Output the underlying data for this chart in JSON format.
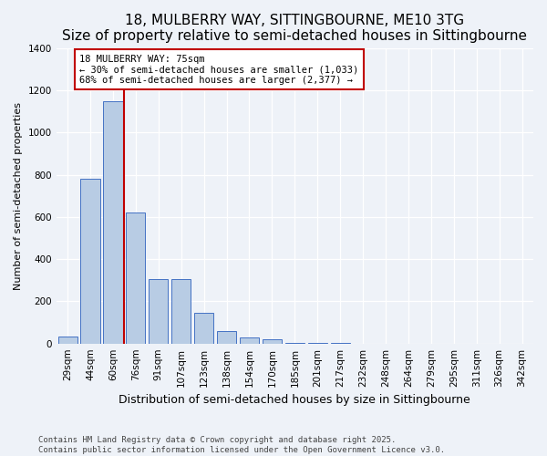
{
  "title": "18, MULBERRY WAY, SITTINGBOURNE, ME10 3TG",
  "subtitle": "Size of property relative to semi-detached houses in Sittingbourne",
  "xlabel": "Distribution of semi-detached houses by size in Sittingbourne",
  "ylabel": "Number of semi-detached properties",
  "categories": [
    "29sqm",
    "44sqm",
    "60sqm",
    "76sqm",
    "91sqm",
    "107sqm",
    "123sqm",
    "138sqm",
    "154sqm",
    "170sqm",
    "185sqm",
    "201sqm",
    "217sqm",
    "232sqm",
    "248sqm",
    "264sqm",
    "279sqm",
    "295sqm",
    "311sqm",
    "326sqm",
    "342sqm"
  ],
  "values": [
    35,
    780,
    1150,
    620,
    305,
    305,
    145,
    60,
    30,
    20,
    5,
    5,
    5,
    0,
    0,
    0,
    0,
    0,
    0,
    0,
    0
  ],
  "bar_color": "#b8cce4",
  "bar_edge_color": "#4472c4",
  "vline_x": 2.5,
  "vline_color": "#c00000",
  "annotation_title": "18 MULBERRY WAY: 75sqm",
  "annotation_line1": "← 30% of semi-detached houses are smaller (1,033)",
  "annotation_line2": "68% of semi-detached houses are larger (2,377) →",
  "annotation_box_facecolor": "#ffffff",
  "annotation_box_edgecolor": "#c00000",
  "ylim": [
    0,
    1400
  ],
  "yticks": [
    0,
    200,
    400,
    600,
    800,
    1000,
    1200,
    1400
  ],
  "footer_line1": "Contains HM Land Registry data © Crown copyright and database right 2025.",
  "footer_line2": "Contains public sector information licensed under the Open Government Licence v3.0.",
  "bg_color": "#eef2f8",
  "grid_color": "#ffffff",
  "title_fontsize": 11,
  "subtitle_fontsize": 9.5,
  "ylabel_fontsize": 8,
  "xlabel_fontsize": 9,
  "tick_fontsize": 7.5,
  "footer_fontsize": 6.5
}
